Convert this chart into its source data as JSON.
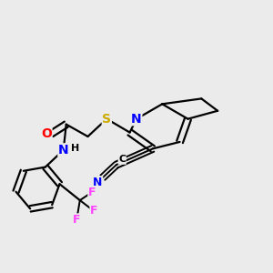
{
  "bg_color": "#ebebeb",
  "atom_colors": {
    "N": "#0000ff",
    "O": "#ff0000",
    "S": "#ccaa00",
    "F": "#ff44ff",
    "CN_N": "#0000ff",
    "C": "#000000"
  },
  "bond_color": "#000000",
  "bond_width": 1.6,
  "dbo": 0.012,
  "figsize": [
    3.0,
    3.0
  ],
  "dpi": 100
}
